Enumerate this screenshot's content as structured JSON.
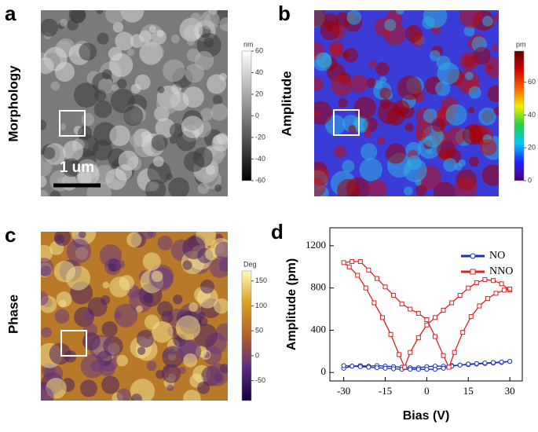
{
  "panels": [
    {
      "letter": "a",
      "ylabel": "Morphology",
      "scale_bar": "1 um",
      "colorbar": {
        "unit": "nm",
        "lim": [
          -60,
          60
        ],
        "ticks": [
          60,
          40,
          20,
          0,
          -20,
          -40,
          -60
        ],
        "colormap": [
          "#000000",
          "#808080",
          "#ffffff"
        ]
      }
    },
    {
      "letter": "b",
      "ylabel": "Amplitude",
      "colorbar": {
        "unit": "pm",
        "lim": [
          0,
          79
        ],
        "ticks": [
          60,
          40,
          20,
          0
        ],
        "colormap": [
          "#4b0070",
          "#2020ff",
          "#00c8ff",
          "#20d040",
          "#f0f000",
          "#ff6000",
          "#d00000",
          "#600000"
        ]
      }
    },
    {
      "letter": "c",
      "ylabel": "Phase",
      "colorbar": {
        "unit": "Deg",
        "lim": [
          -90,
          170
        ],
        "ticks": [
          150,
          100,
          50,
          0,
          -50
        ],
        "colormap": [
          "#14003a",
          "#5a2a80",
          "#b0602a",
          "#d8a020",
          "#fff8c0"
        ]
      }
    }
  ],
  "chart_data": {
    "type": "line",
    "label": "d",
    "xlabel": "Bias (V)",
    "ylabel": "Amplitude (pm)",
    "xlim": [
      -35,
      34.5
    ],
    "ylim": [
      -80,
      1370
    ],
    "xticks": [
      -30,
      -15,
      0,
      15,
      30
    ],
    "yticks": [
      0,
      400,
      800,
      1200
    ],
    "legend": "upper right",
    "series": [
      {
        "name": "NO",
        "color": "#1a2fc0",
        "marker": "circle",
        "x": [
          -30,
          -27,
          -24,
          -21,
          -18,
          -15,
          -12,
          -9,
          -6,
          -3,
          0,
          3,
          6,
          9,
          12,
          15,
          18,
          21,
          24,
          27,
          30,
          27,
          24,
          21,
          18,
          15,
          12,
          9,
          6,
          3,
          0,
          -3,
          -6,
          -9,
          -12,
          -15,
          -18,
          -21,
          -24,
          -27,
          -30
        ],
        "values": [
          40,
          60,
          65,
          60,
          65,
          60,
          55,
          50,
          45,
          45,
          55,
          60,
          60,
          65,
          70,
          75,
          80,
          85,
          90,
          95,
          105,
          100,
          95,
          90,
          85,
          80,
          70,
          60,
          40,
          30,
          30,
          30,
          30,
          30,
          35,
          40,
          45,
          50,
          55,
          60,
          65
        ]
      },
      {
        "name": "NNO",
        "color": "#e02020",
        "marker": "square",
        "x": [
          30,
          27,
          24,
          21,
          18,
          15,
          12,
          9,
          6,
          3,
          0,
          -3,
          -6,
          -8,
          -10,
          -13,
          -16,
          -19,
          -22,
          -25,
          -28,
          -30,
          -27,
          -24,
          -21,
          -18,
          -15,
          -12,
          -9,
          -6,
          -3,
          0,
          3,
          6,
          8,
          10,
          13,
          16,
          19,
          22,
          25,
          28,
          30
        ],
        "values": [
          780,
          840,
          870,
          880,
          850,
          800,
          730,
          660,
          590,
          520,
          450,
          330,
          190,
          50,
          170,
          360,
          520,
          660,
          800,
          920,
          1000,
          1040,
          1050,
          1050,
          970,
          890,
          810,
          730,
          650,
          600,
          560,
          500,
          340,
          160,
          50,
          190,
          380,
          530,
          630,
          700,
          750,
          780,
          790
        ]
      }
    ]
  }
}
